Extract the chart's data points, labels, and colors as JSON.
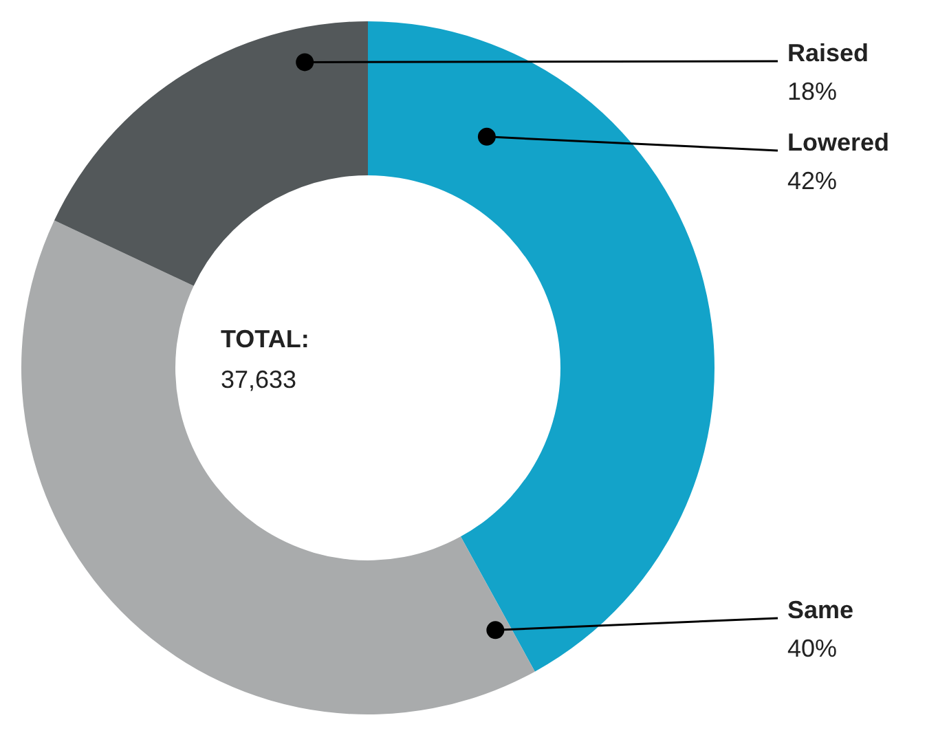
{
  "chart_data": {
    "type": "donut",
    "categories": [
      "Lowered",
      "Same",
      "Raised"
    ],
    "values": [
      42,
      40,
      18
    ],
    "value_labels": [
      "42%",
      "40%",
      "18%"
    ],
    "colors": [
      "#13a3c9",
      "#a9abac",
      "#53585a"
    ],
    "annotations": [
      "TOTAL:",
      "37,633"
    ]
  }
}
